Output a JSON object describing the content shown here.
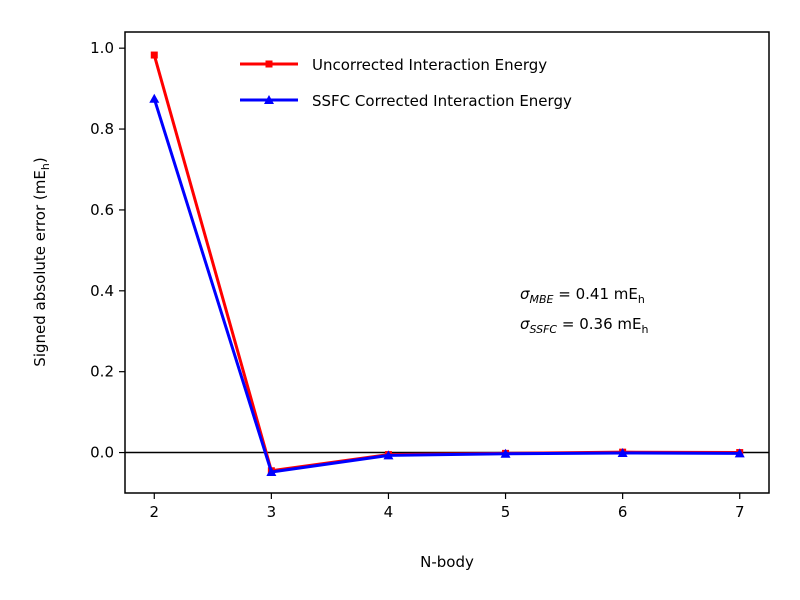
{
  "chart_data": {
    "type": "line",
    "title": "",
    "xlabel": "N-body",
    "ylabel": "Signed absolute error (mE",
    "ylabel_sub": "h",
    "ylabel_close": ")",
    "x": [
      2,
      3,
      4,
      5,
      6,
      7
    ],
    "xlim": [
      1.75,
      7.25
    ],
    "ylim": [
      -0.1,
      1.04
    ],
    "x_ticks": [
      2,
      3,
      4,
      5,
      6,
      7
    ],
    "y_ticks": [
      0.0,
      0.2,
      0.4,
      0.6,
      0.8,
      1.0
    ],
    "y_tick_labels": [
      "0.0",
      "0.2",
      "0.4",
      "0.6",
      "0.8",
      "1.0"
    ],
    "grid": false,
    "reference_line_y": 0.0,
    "legend_position": "top-right",
    "series": [
      {
        "name": "Uncorrected Interaction Energy",
        "color": "#ff0000",
        "marker": "square",
        "values": [
          0.983,
          -0.045,
          -0.005,
          -0.002,
          0.001,
          0.0
        ]
      },
      {
        "name": "SSFC Corrected Interaction Energy",
        "color": "#0000ff",
        "marker": "triangle",
        "values": [
          0.875,
          -0.048,
          -0.007,
          -0.003,
          -0.001,
          -0.002
        ]
      }
    ],
    "annotations": [
      {
        "symbol": "σ",
        "subscript": "MBE",
        "text": " = 0.41 mE",
        "unit_sub": "h"
      },
      {
        "symbol": "σ",
        "subscript": "SSFC",
        "text": " = 0.36 mE",
        "unit_sub": "h"
      }
    ]
  }
}
